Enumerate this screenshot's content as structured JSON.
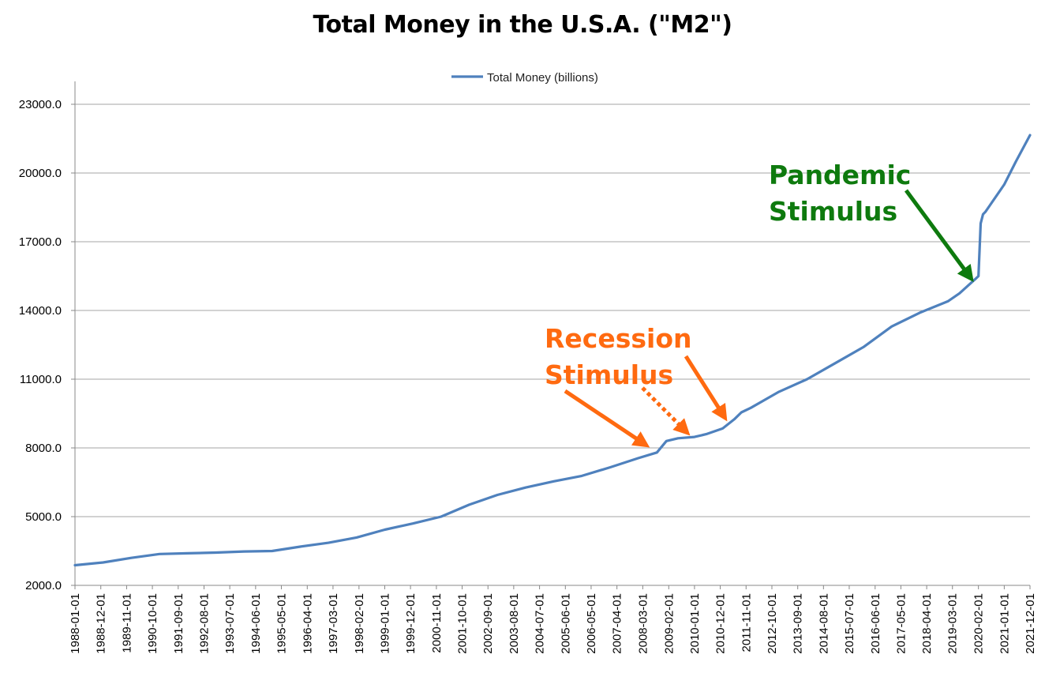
{
  "chart_data": {
    "type": "line",
    "title": "Total Money in the U.S.A. (\"M2\")",
    "xlabel": "",
    "ylabel": "",
    "ylim": [
      2000,
      24000
    ],
    "yticks": [
      "2000.0",
      "5000.0",
      "8000.0",
      "11000.0",
      "14000.0",
      "17000.0",
      "20000.0",
      "23000.0"
    ],
    "xticks": [
      "1988-01-01",
      "1988-12-01",
      "1989-11-01",
      "1990-10-01",
      "1991-09-01",
      "1992-08-01",
      "1993-07-01",
      "1994-06-01",
      "1995-05-01",
      "1996-04-01",
      "1997-03-01",
      "1998-02-01",
      "1999-01-01",
      "1999-12-01",
      "2000-11-01",
      "2001-10-01",
      "2002-09-01",
      "2003-08-01",
      "2004-07-01",
      "2005-06-01",
      "2006-05-01",
      "2007-04-01",
      "2008-03-01",
      "2009-02-01",
      "2010-01-01",
      "2010-12-01",
      "2011-11-01",
      "2012-10-01",
      "2013-09-01",
      "2014-08-01",
      "2015-07-01",
      "2016-06-01",
      "2017-05-01",
      "2018-04-01",
      "2019-03-01",
      "2020-02-01",
      "2021-01-01",
      "2021-12-01"
    ],
    "grid": true,
    "legend_position": "top",
    "series": [
      {
        "name": "Total Money (billions)",
        "color": "#4f81bd",
        "x": [
          "1988-01-01",
          "1989-01-01",
          "1990-01-01",
          "1991-01-01",
          "1992-01-01",
          "1993-01-01",
          "1994-01-01",
          "1995-01-01",
          "1996-01-01",
          "1997-01-01",
          "1998-01-01",
          "1999-01-01",
          "2000-01-01",
          "2001-01-01",
          "2002-01-01",
          "2003-01-01",
          "2004-01-01",
          "2005-01-01",
          "2006-01-01",
          "2007-01-01",
          "2008-01-01",
          "2008-09-01",
          "2009-01-01",
          "2009-06-01",
          "2010-01-01",
          "2010-06-01",
          "2011-01-01",
          "2011-06-01",
          "2011-09-01",
          "2012-01-01",
          "2013-01-01",
          "2014-01-01",
          "2015-01-01",
          "2016-01-01",
          "2017-01-01",
          "2018-01-01",
          "2019-01-01",
          "2019-06-01",
          "2020-01-01",
          "2020-02-01",
          "2020-03-01",
          "2020-04-01",
          "2020-05-01",
          "2020-07-01",
          "2021-01-01",
          "2021-06-01",
          "2021-12-01"
        ],
        "values": [
          2880,
          3000,
          3200,
          3370,
          3400,
          3430,
          3480,
          3500,
          3690,
          3860,
          4090,
          4430,
          4700,
          5000,
          5520,
          5950,
          6270,
          6540,
          6780,
          7150,
          7550,
          7800,
          8300,
          8420,
          8480,
          8600,
          8850,
          9250,
          9550,
          9750,
          10450,
          11000,
          11700,
          12400,
          13300,
          13900,
          14400,
          14750,
          15400,
          15500,
          17800,
          18200,
          18300,
          18600,
          19500,
          20500,
          21650
        ]
      }
    ],
    "annotations": [
      {
        "text_lines": [
          "Recession",
          "Stimulus"
        ],
        "color": "#ff6a10"
      },
      {
        "text_lines": [
          "Pandemic",
          "Stimulus"
        ],
        "color": "#0e7a0e"
      }
    ]
  }
}
